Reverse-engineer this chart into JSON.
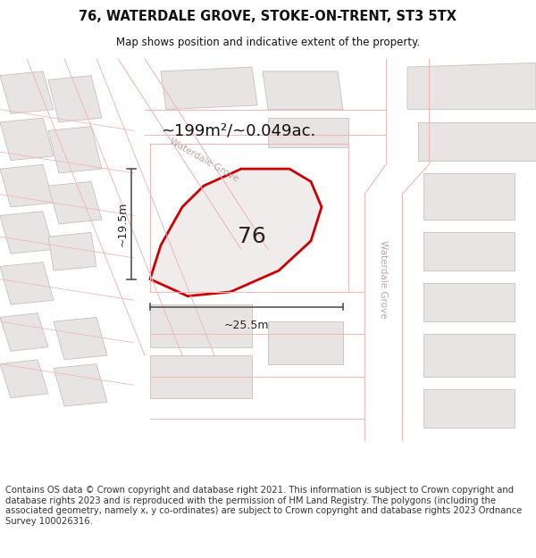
{
  "title_line1": "76, WATERDALE GROVE, STOKE-ON-TRENT, ST3 5TX",
  "title_line2": "Map shows position and indicative extent of the property.",
  "footer_text": "Contains OS data © Crown copyright and database right 2021. This information is subject to Crown copyright and database rights 2023 and is reproduced with the permission of HM Land Registry. The polygons (including the associated geometry, namely x, y co-ordinates) are subject to Crown copyright and database rights 2023 Ordnance Survey 100026316.",
  "area_label": "~199m²/~0.049ac.",
  "number_label": "76",
  "dim_height": "~19.5m",
  "dim_width": "~25.5m",
  "road_label_diag": "Waterdale Grove",
  "road_label_vert": "Waterdale Grove",
  "map_bg": "#f7f4f4",
  "road_line_color": "#f0b8b8",
  "building_fill": "#e8e4e4",
  "building_edge": "#c8c0c0",
  "prop_fill": "#f0ecec",
  "prop_outline": "#cc0000",
  "dim_color": "#555555",
  "text_color": "#111111",
  "road_text_color": "#b8a8a8",
  "title_fontsize": 10.5,
  "subtitle_fontsize": 8.5,
  "footer_fontsize": 7.2,
  "area_fontsize": 13,
  "num_fontsize": 18,
  "dim_fontsize": 9
}
